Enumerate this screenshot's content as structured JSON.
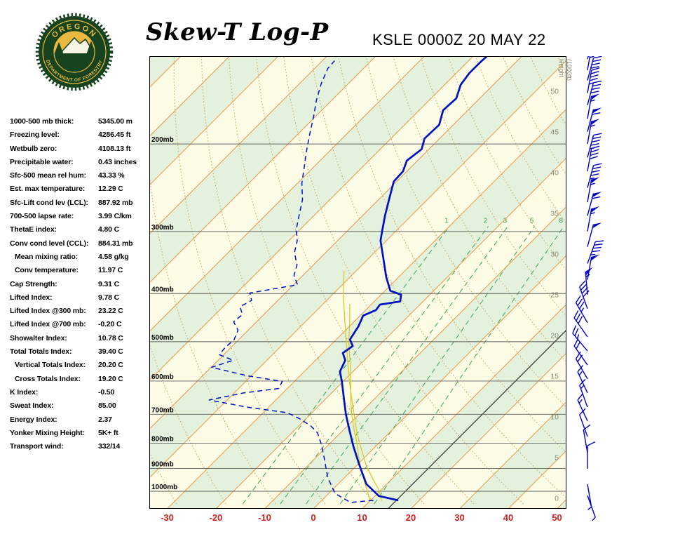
{
  "header": {
    "title": "Skew-T Log-P",
    "station_line": "KSLE 0000Z 20 MAY 22"
  },
  "logo": {
    "top_text": "OREGON",
    "bottom_text": "DEPARTMENT OF FORESTRY"
  },
  "indices": [
    {
      "label": "1000-500 mb thick:",
      "value": "5345.00 m",
      "indent": false
    },
    {
      "label": "Freezing level:",
      "value": "4286.45 ft",
      "indent": false
    },
    {
      "label": "Wetbulb zero:",
      "value": "4108.13 ft",
      "indent": false
    },
    {
      "label": "Precipitable water:",
      "value": "0.43 inches",
      "indent": false
    },
    {
      "label": "Sfc-500 mean rel hum:",
      "value": "43.33 %",
      "indent": false
    },
    {
      "label": "Est. max temperature:",
      "value": "12.29 C",
      "indent": false
    },
    {
      "label": "Sfc-Lift cond lev (LCL):",
      "value": "887.92 mb",
      "indent": false
    },
    {
      "label": "700-500 lapse rate:",
      "value": "3.99 C/km",
      "indent": false
    },
    {
      "label": "ThetaE index:",
      "value": "4.80 C",
      "indent": false
    },
    {
      "label": "Conv cond level (CCL):",
      "value": "884.31 mb",
      "indent": false
    },
    {
      "label": "Mean mixing ratio:",
      "value": "4.58 g/kg",
      "indent": true
    },
    {
      "label": "Conv temperature:",
      "value": "11.97 C",
      "indent": true
    },
    {
      "label": "Cap Strength:",
      "value": "9.31 C",
      "indent": false
    },
    {
      "label": "Lifted Index:",
      "value": "9.78 C",
      "indent": false
    },
    {
      "label": "Lifted Index @300 mb:",
      "value": "23.22 C",
      "indent": false
    },
    {
      "label": "Lifted Index @700 mb:",
      "value": "-0.20 C",
      "indent": false
    },
    {
      "label": "Showalter Index:",
      "value": "10.78 C",
      "indent": false
    },
    {
      "label": "Total Totals Index:",
      "value": "39.40 C",
      "indent": false
    },
    {
      "label": "Vertical Totals Index:",
      "value": "20.20 C",
      "indent": true
    },
    {
      "label": "Cross Totals Index:",
      "value": "19.20 C",
      "indent": true
    },
    {
      "label": "K Index:",
      "value": "-0.50",
      "indent": false
    },
    {
      "label": "Sweat Index:",
      "value": "85.00",
      "indent": false
    },
    {
      "label": "Energy Index:",
      "value": "2.37",
      "indent": false
    },
    {
      "label": "Yonker Mixing Height:",
      "value": "5K+ ft",
      "indent": false
    },
    {
      "label": "Transport wind:",
      "value": "332/14",
      "indent": false
    }
  ],
  "chart_data": {
    "type": "line",
    "subtype": "skewt-log-p",
    "station": "KSLE",
    "valid_time": "0000Z 20 MAY 22",
    "pressure_axis": {
      "log_scale": true,
      "levels": [
        {
          "p": 200,
          "label": "200mb"
        },
        {
          "p": 300,
          "label": "300mb"
        },
        {
          "p": 400,
          "label": "400mb"
        },
        {
          "p": 500,
          "label": "500mb"
        },
        {
          "p": 600,
          "label": "600mb"
        },
        {
          "p": 700,
          "label": "700mb"
        },
        {
          "p": 800,
          "label": "800mb"
        },
        {
          "p": 900,
          "label": "900mb"
        },
        {
          "p": 1000,
          "label": "1000mb"
        }
      ]
    },
    "temp_axis": {
      "unit": "C",
      "ticks": [
        -30,
        -20,
        -10,
        0,
        10,
        20,
        30,
        40,
        50
      ]
    },
    "height_axis": {
      "unit": "1000ft",
      "label_line1": "Height",
      "label_line2": "(1000ft)",
      "ticks": [
        50,
        45,
        40,
        35,
        30,
        25,
        20,
        15,
        10,
        5,
        0
      ]
    },
    "grid": {
      "isotherm_min": -120,
      "isotherm_max": 50,
      "isotherm_step": 10,
      "reference_isotherm_c": 15.3,
      "dry_adiabats_k": [
        240,
        250,
        260,
        270,
        280,
        290,
        300,
        310,
        320,
        330,
        340,
        350,
        360,
        370,
        380,
        390,
        400,
        410,
        420,
        430,
        440
      ],
      "mixing_ratio_lines": [
        {
          "w": 1,
          "td_1060mb": -15.5,
          "td_293mb": -30.0
        },
        {
          "w": 2,
          "td_1060mb": -7.8,
          "td_293mb": -22.0
        },
        {
          "w": 3,
          "td_1060mb": -2.5,
          "td_293mb": -18.0
        },
        {
          "w": 5,
          "td_1060mb": 4.5,
          "td_293mb": -12.5
        },
        {
          "w": 8,
          "td_1060mb": 11.5,
          "td_293mb": -6.5
        }
      ]
    },
    "colors": {
      "band_cream": "#FBFBE6",
      "band_green": "#E3F1DD",
      "isotherm": "#E89B4E",
      "dry_adiabat": "#C9A052",
      "mixing": "#3FA24F",
      "pressure_line": "#5F5F5F",
      "profile": "#0011BE",
      "wind": "#0000C6",
      "parcel": "#D8CA2E",
      "axis_red": "#CC2222",
      "height_gray": "#8B8B74",
      "reference": "#222222"
    },
    "temperature_profile": [
      [
        1043,
        15.7
      ],
      [
        1022,
        10.8
      ],
      [
        967,
        5.8
      ],
      [
        883,
        0.3
      ],
      [
        812,
        -4.6
      ],
      [
        755,
        -8.6
      ],
      [
        700,
        -12.7
      ],
      [
        650,
        -16.4
      ],
      [
        603,
        -20.1
      ],
      [
        574,
        -22.7
      ],
      [
        545,
        -23.9
      ],
      [
        527,
        -25.9
      ],
      [
        510,
        -25.3
      ],
      [
        495,
        -27.2
      ],
      [
        465,
        -28.2
      ],
      [
        443,
        -29.4
      ],
      [
        432,
        -27.9
      ],
      [
        421,
        -28.2
      ],
      [
        415,
        -24.7
      ],
      [
        402,
        -25.9
      ],
      [
        395,
        -28.9
      ],
      [
        371,
        -32.5
      ],
      [
        341,
        -36.8
      ],
      [
        313,
        -41.2
      ],
      [
        298,
        -43.0
      ],
      [
        278,
        -45.5
      ],
      [
        257,
        -48.1
      ],
      [
        238,
        -50.6
      ],
      [
        227,
        -50.8
      ],
      [
        216,
        -52.2
      ],
      [
        205,
        -51.5
      ],
      [
        195,
        -53.1
      ],
      [
        183,
        -52.9
      ],
      [
        171,
        -55.1
      ],
      [
        162,
        -54.8
      ],
      [
        152,
        -56.7
      ],
      [
        144,
        -57.3
      ],
      [
        137,
        -57.3
      ],
      [
        131,
        -57.1
      ]
    ],
    "dewpoint_profile": [
      [
        1043,
        10.6
      ],
      [
        1053,
        6.3
      ],
      [
        1010,
        1.3
      ],
      [
        938,
        -3.5
      ],
      [
        862,
        -7.9
      ],
      [
        807,
        -11.4
      ],
      [
        763,
        -14.7
      ],
      [
        738,
        -17.6
      ],
      [
        714,
        -21.4
      ],
      [
        695,
        -25.0
      ],
      [
        677,
        -34.5
      ],
      [
        655,
        -43.7
      ],
      [
        634,
        -38.1
      ],
      [
        621,
        -31.8
      ],
      [
        601,
        -32.5
      ],
      [
        586,
        -40.6
      ],
      [
        563,
        -49.9
      ],
      [
        545,
        -46.9
      ],
      [
        531,
        -50.9
      ],
      [
        513,
        -51.2
      ],
      [
        496,
        -50.9
      ],
      [
        474,
        -52.1
      ],
      [
        456,
        -54.7
      ],
      [
        441,
        -54.4
      ],
      [
        425,
        -56.5
      ],
      [
        413,
        -55.4
      ],
      [
        399,
        -57.3
      ],
      [
        384,
        -49.2
      ],
      [
        368,
        -51.8
      ],
      [
        350,
        -53.4
      ],
      [
        331,
        -56.4
      ],
      [
        313,
        -58.3
      ],
      [
        298,
        -60.7
      ],
      [
        280,
        -62.9
      ],
      [
        259,
        -65.6
      ],
      [
        240,
        -69.1
      ],
      [
        224,
        -71.7
      ],
      [
        207,
        -74.7
      ],
      [
        192,
        -77.4
      ],
      [
        176,
        -80.4
      ],
      [
        163,
        -83.2
      ],
      [
        151,
        -85.6
      ],
      [
        141,
        -87.3
      ],
      [
        136,
        -87.5
      ]
    ],
    "parcel_lines": [
      {
        "name": "wetbulb-profile-line",
        "points": [
          [
            1045,
            10.0
          ],
          [
            1000,
            7.5
          ],
          [
            950,
            4.5
          ],
          [
            900,
            1.5
          ],
          [
            850,
            -1.5
          ],
          [
            800,
            -4.5
          ],
          [
            750,
            -8.0
          ],
          [
            700,
            -11.5
          ],
          [
            650,
            -15.0
          ],
          [
            600,
            -18.5
          ],
          [
            550,
            -22.5
          ],
          [
            500,
            -27.0
          ],
          [
            460,
            -30.5
          ],
          [
            420,
            -34.5
          ]
        ]
      },
      {
        "name": "parcel-ascent-line",
        "points": [
          [
            1045,
            12.3
          ],
          [
            1000,
            10.0
          ],
          [
            950,
            6.5
          ],
          [
            888,
            2.0
          ],
          [
            850,
            -0.5
          ],
          [
            800,
            -4.0
          ],
          [
            750,
            -7.5
          ],
          [
            700,
            -11.0
          ],
          [
            650,
            -14.8
          ],
          [
            600,
            -18.8
          ],
          [
            550,
            -23.0
          ],
          [
            500,
            -27.5
          ],
          [
            450,
            -32.5
          ],
          [
            400,
            -38.0
          ],
          [
            360,
            -42.5
          ]
        ]
      }
    ],
    "wind_barbs": [
      {
        "p": 135,
        "dir": 15,
        "spd": 30
      },
      {
        "p": 142,
        "dir": 10,
        "spd": 35
      },
      {
        "p": 149,
        "dir": 15,
        "spd": 40
      },
      {
        "p": 158,
        "dir": 10,
        "spd": 45
      },
      {
        "p": 167,
        "dir": 15,
        "spd": 40
      },
      {
        "p": 178,
        "dir": 10,
        "spd": 55
      },
      {
        "p": 189,
        "dir": 15,
        "spd": 60
      },
      {
        "p": 200,
        "dir": 10,
        "spd": 55
      },
      {
        "p": 213,
        "dir": 15,
        "spd": 45
      },
      {
        "p": 227,
        "dir": 10,
        "spd": 40
      },
      {
        "p": 245,
        "dir": 15,
        "spd": 45
      },
      {
        "p": 262,
        "dir": 10,
        "spd": 55
      },
      {
        "p": 279,
        "dir": 15,
        "spd": 60
      },
      {
        "p": 300,
        "dir": 10,
        "spd": 55
      },
      {
        "p": 322,
        "dir": 15,
        "spd": 50
      },
      {
        "p": 348,
        "dir": 20,
        "spd": 45
      },
      {
        "p": 375,
        "dir": 10,
        "spd": 50
      },
      {
        "p": 402,
        "dir": 355,
        "spd": 55
      },
      {
        "p": 429,
        "dir": 340,
        "spd": 40
      },
      {
        "p": 458,
        "dir": 330,
        "spd": 35
      },
      {
        "p": 489,
        "dir": 325,
        "spd": 30
      },
      {
        "p": 522,
        "dir": 320,
        "spd": 25
      },
      {
        "p": 557,
        "dir": 325,
        "spd": 20
      },
      {
        "p": 594,
        "dir": 330,
        "spd": 20
      },
      {
        "p": 634,
        "dir": 335,
        "spd": 15
      },
      {
        "p": 677,
        "dir": 340,
        "spd": 15
      },
      {
        "p": 722,
        "dir": 335,
        "spd": 15
      },
      {
        "p": 776,
        "dir": 340,
        "spd": 10
      },
      {
        "p": 836,
        "dir": 350,
        "spd": 10
      },
      {
        "p": 901,
        "dir": 0,
        "spd": 10
      },
      {
        "p": 968,
        "dir": 170,
        "spd": 5
      },
      {
        "p": 1020,
        "dir": 160,
        "spd": 7
      }
    ]
  }
}
